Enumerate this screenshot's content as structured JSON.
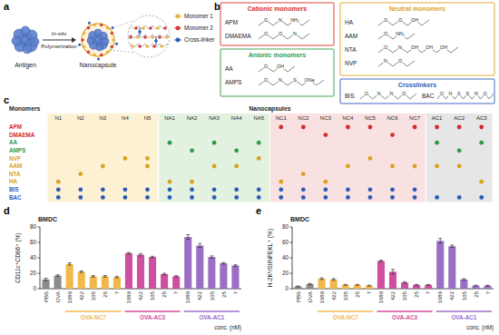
{
  "panel_labels": [
    "a",
    "b",
    "c",
    "d",
    "e"
  ],
  "schematic": {
    "antigen": "Antigen",
    "process": [
      "In-situ",
      "Polymerization"
    ],
    "product": "Nanocapsule",
    "legend": [
      {
        "label": "Monomer 1",
        "color": "#e8b23c"
      },
      {
        "label": "Monomer 2",
        "color": "#d63a3a"
      },
      {
        "label": "Cross-linker",
        "color": "#2b5cb8"
      }
    ]
  },
  "monomers": {
    "groups": [
      {
        "title": "Cationic monomers",
        "color": "#d62b2b",
        "items": [
          {
            "name": "APM",
            "atoms": [
              "O",
              "N",
              "NH₂"
            ]
          },
          {
            "name": "DMAEMA",
            "atoms": [
              "O",
              "O",
              "N"
            ]
          }
        ]
      },
      {
        "title": "Anionic monomers",
        "color": "#2f9a48",
        "items": [
          {
            "name": "AA",
            "atoms": [
              "O",
              "OH"
            ]
          },
          {
            "name": "AMPS",
            "atoms": [
              "O",
              "N",
              "S",
              "ONa"
            ]
          }
        ]
      },
      {
        "title": "Neutral monomers",
        "color": "#d9a21f",
        "items": [
          {
            "name": "HA",
            "atoms": [
              "O",
              "O",
              "OH"
            ]
          },
          {
            "name": "AAM",
            "atoms": [
              "O",
              "NH₂"
            ]
          },
          {
            "name": "NTA",
            "atoms": [
              "O",
              "N",
              "OH",
              "OH",
              "OH"
            ]
          },
          {
            "name": "NVP",
            "atoms": [
              "N",
              "O"
            ]
          }
        ]
      },
      {
        "title": "Crosslinkers",
        "color": "#2b5cb8",
        "items": [
          {
            "name": "BIS",
            "atoms": [
              "O",
              "N",
              "N",
              "O"
            ]
          },
          {
            "name": "BAC",
            "atoms": [
              "O",
              "N",
              "S",
              "S",
              "N",
              "O"
            ]
          }
        ]
      }
    ]
  },
  "table": {
    "row_header": "Monomers",
    "column_header": "Nanocapsules",
    "column_groups": [
      {
        "color": "#fcf1d3",
        "columns": [
          "N1",
          "N2",
          "N3",
          "N4",
          "N5"
        ]
      },
      {
        "color": "#e2f1e0",
        "columns": [
          "NA1",
          "NA2",
          "NA3",
          "NA4",
          "NA5"
        ]
      },
      {
        "color": "#fae1e1",
        "columns": [
          "NC1",
          "NC2",
          "NC3",
          "NC4",
          "NC5",
          "NC6",
          "NC7"
        ]
      },
      {
        "color": "#e6e6e6",
        "columns": [
          "AC1",
          "AC2",
          "AC3"
        ]
      }
    ],
    "rows": [
      {
        "label": "APM",
        "color": "#d62b2b",
        "cells": [
          0,
          0,
          0,
          0,
          0,
          0,
          0,
          0,
          0,
          0,
          1,
          1,
          0,
          1,
          1,
          0,
          1,
          1,
          1,
          1
        ]
      },
      {
        "label": "DMAEMA",
        "color": "#d62b2b",
        "cells": [
          0,
          0,
          0,
          0,
          0,
          0,
          0,
          0,
          0,
          0,
          0,
          0,
          1,
          0,
          0,
          1,
          0,
          0,
          0,
          0
        ]
      },
      {
        "label": "AA",
        "color": "#2f9a48",
        "cells": [
          0,
          0,
          0,
          0,
          0,
          1,
          0,
          1,
          0,
          1,
          0,
          0,
          0,
          0,
          0,
          0,
          0,
          1,
          0,
          1
        ]
      },
      {
        "label": "AMPS",
        "color": "#2f9a48",
        "cells": [
          0,
          0,
          0,
          0,
          0,
          0,
          1,
          0,
          1,
          0,
          0,
          0,
          0,
          0,
          0,
          0,
          0,
          0,
          1,
          0
        ]
      },
      {
        "label": "NVP",
        "color": "#d9a21f",
        "cells": [
          0,
          0,
          0,
          1,
          1,
          0,
          0,
          0,
          0,
          1,
          0,
          0,
          0,
          0,
          1,
          0,
          0,
          0,
          0,
          0
        ]
      },
      {
        "label": "AAM",
        "color": "#d9a21f",
        "cells": [
          0,
          0,
          1,
          0,
          1,
          0,
          0,
          1,
          1,
          0,
          0,
          0,
          0,
          1,
          0,
          1,
          1,
          1,
          1,
          0
        ]
      },
      {
        "label": "NTA",
        "color": "#d9a21f",
        "cells": [
          0,
          1,
          0,
          0,
          0,
          0,
          0,
          0,
          0,
          0,
          0,
          1,
          0,
          0,
          0,
          0,
          0,
          0,
          0,
          0
        ]
      },
      {
        "label": "HA",
        "color": "#d9a21f",
        "cells": [
          1,
          0,
          0,
          0,
          0,
          1,
          1,
          0,
          0,
          0,
          1,
          0,
          1,
          0,
          0,
          0,
          0,
          0,
          0,
          1
        ]
      },
      {
        "label": "BIS",
        "color": "#2b5cb8",
        "cells": [
          1,
          1,
          1,
          1,
          1,
          1,
          1,
          1,
          1,
          1,
          1,
          1,
          1,
          1,
          1,
          1,
          1,
          0,
          0,
          0
        ]
      },
      {
        "label": "BAC",
        "color": "#2b5cb8",
        "cells": [
          1,
          1,
          1,
          1,
          1,
          1,
          1,
          1,
          1,
          1,
          1,
          1,
          1,
          1,
          1,
          1,
          1,
          1,
          1,
          1
        ]
      }
    ]
  },
  "chart_data": [
    {
      "type": "bar",
      "title": "BMDC",
      "y_label": "CD11c⁺CD86⁺ (%)",
      "x_label": "conc. (nM)",
      "categories": [
        "PBS",
        "OVA",
        "1689",
        "422",
        "105",
        "25",
        "7",
        "1689",
        "422",
        "105",
        "25",
        "7",
        "1689",
        "422",
        "105",
        "25",
        "7"
      ],
      "values": [
        12,
        17,
        32,
        22,
        16,
        16,
        15,
        46,
        44,
        41,
        19,
        16,
        67,
        56,
        41,
        33,
        30
      ],
      "errors": [
        1.5,
        1,
        1.5,
        1,
        1,
        1,
        1,
        1,
        1.5,
        1,
        1,
        1,
        3,
        2.5,
        1.5,
        1,
        1
      ],
      "colors": [
        "#8c8c8c",
        "#8c8c8c",
        "#f2b84b",
        "#f2b84b",
        "#f2b84b",
        "#f2b84b",
        "#f2b84b",
        "#cf4fa0",
        "#cf4fa0",
        "#cf4fa0",
        "#cf4fa0",
        "#cf4fa0",
        "#9a6fc4",
        "#9a6fc4",
        "#9a6fc4",
        "#9a6fc4",
        "#9a6fc4"
      ],
      "groups": [
        {
          "label": "OVA-NC7",
          "size": 5
        },
        {
          "label": "OVA-AC3",
          "size": 5
        },
        {
          "label": "OVA-AC1",
          "size": 5
        }
      ],
      "ylim": [
        0,
        80
      ],
      "yticks": [
        0,
        20,
        40,
        60,
        80
      ]
    },
    {
      "type": "bar",
      "title": "BMDC",
      "y_label": "H-2Kᵇ/SIINFEKL⁺ (%)",
      "x_label": "conc. (nM)",
      "categories": [
        "PBS",
        "OVA",
        "1689",
        "422",
        "105",
        "25",
        "7",
        "1689",
        "422",
        "105",
        "25",
        "7",
        "1689",
        "422",
        "105",
        "25",
        "7"
      ],
      "values": [
        3,
        6,
        13,
        12,
        5,
        5,
        4,
        36,
        22,
        8,
        5,
        5,
        62,
        55,
        12,
        4,
        4
      ],
      "errors": [
        0.5,
        0.8,
        1,
        1,
        0.5,
        0.5,
        0.5,
        1,
        3,
        1,
        0.5,
        0.5,
        3,
        1.5,
        1,
        0.5,
        0.5
      ],
      "colors": [
        "#8c8c8c",
        "#8c8c8c",
        "#f2b84b",
        "#f2b84b",
        "#f2b84b",
        "#f2b84b",
        "#f2b84b",
        "#cf4fa0",
        "#cf4fa0",
        "#cf4fa0",
        "#cf4fa0",
        "#cf4fa0",
        "#9a6fc4",
        "#9a6fc4",
        "#9a6fc4",
        "#9a6fc4",
        "#9a6fc4"
      ],
      "groups": [
        {
          "label": "OVA-NC7",
          "size": 5
        },
        {
          "label": "OVA-AC3",
          "size": 5
        },
        {
          "label": "OVA-AC1",
          "size": 5
        }
      ],
      "ylim": [
        0,
        80
      ],
      "yticks": [
        0,
        20,
        40,
        60,
        80
      ]
    }
  ]
}
